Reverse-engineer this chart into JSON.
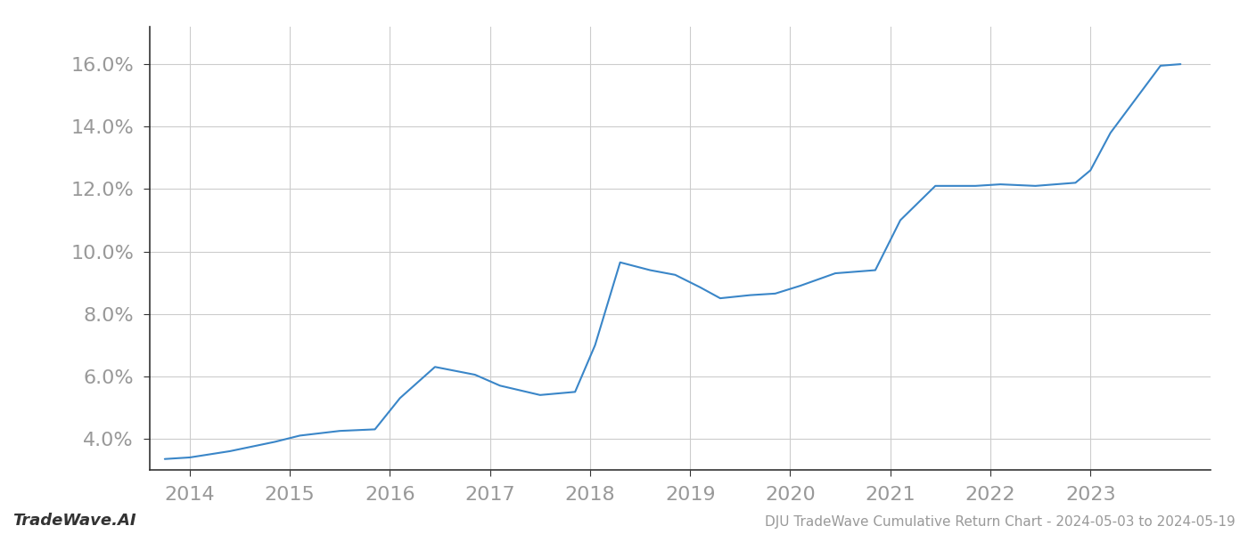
{
  "x_values": [
    2013.75,
    2014.0,
    2014.4,
    2014.85,
    2015.1,
    2015.5,
    2015.85,
    2016.1,
    2016.45,
    2016.85,
    2017.1,
    2017.5,
    2017.85,
    2018.05,
    2018.3,
    2018.6,
    2018.85,
    2019.1,
    2019.3,
    2019.6,
    2019.85,
    2020.1,
    2020.45,
    2020.85,
    2021.1,
    2021.45,
    2021.85,
    2022.1,
    2022.45,
    2022.85,
    2023.0,
    2023.2,
    2023.7,
    2023.9
  ],
  "y_values": [
    3.35,
    3.4,
    3.6,
    3.9,
    4.1,
    4.25,
    4.3,
    5.3,
    6.3,
    6.05,
    5.7,
    5.4,
    5.5,
    7.0,
    9.65,
    9.4,
    9.25,
    8.85,
    8.5,
    8.6,
    8.65,
    8.9,
    9.3,
    9.4,
    11.0,
    12.1,
    12.1,
    12.15,
    12.1,
    12.2,
    12.6,
    13.8,
    15.95,
    16.0
  ],
  "line_color": "#3a86c8",
  "line_width": 1.5,
  "title": "DJU TradeWave Cumulative Return Chart - 2024-05-03 to 2024-05-19",
  "watermark": "TradeWave.AI",
  "background_color": "#ffffff",
  "grid_color": "#cccccc",
  "ytick_labels": [
    "4.0%",
    "6.0%",
    "8.0%",
    "10.0%",
    "12.0%",
    "14.0%",
    "16.0%"
  ],
  "ytick_values": [
    4.0,
    6.0,
    8.0,
    10.0,
    12.0,
    14.0,
    16.0
  ],
  "xtick_labels": [
    "2014",
    "2015",
    "2016",
    "2017",
    "2018",
    "2019",
    "2020",
    "2021",
    "2022",
    "2023"
  ],
  "xtick_values": [
    2014,
    2015,
    2016,
    2017,
    2018,
    2019,
    2020,
    2021,
    2022,
    2023
  ],
  "xlim": [
    2013.6,
    2024.2
  ],
  "ylim": [
    3.0,
    17.2
  ],
  "title_fontsize": 11,
  "watermark_fontsize": 13,
  "tick_fontsize": 16,
  "tick_color": "#999999",
  "axis_line_color": "#333333",
  "bottom_text_color": "#999999"
}
